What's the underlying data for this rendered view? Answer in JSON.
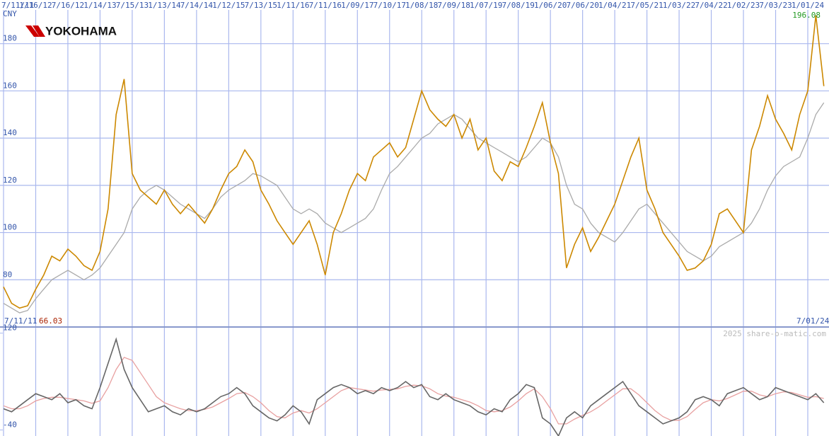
{
  "chart_data": [
    {
      "type": "line",
      "title": "YOKOHAMA",
      "y_label": "CNY",
      "watermark": "2025 share-o-matic.com",
      "low": {
        "date": "7/11/11",
        "value": 66.03
      },
      "high": {
        "date": "7/01/24",
        "value": 196.08
      },
      "categories": [
        "7/11/11",
        null,
        null,
        null,
        "1/16/12",
        null,
        null,
        null,
        "7/16/12",
        null,
        null,
        null,
        "1/14/13",
        null,
        null,
        null,
        "7/15/13",
        null,
        null,
        null,
        "1/13/14",
        null,
        null,
        null,
        "7/14/14",
        null,
        null,
        null,
        "1/12/15",
        null,
        null,
        null,
        "7/13/15",
        null,
        null,
        null,
        "1/11/16",
        null,
        null,
        null,
        "7/11/16",
        null,
        null,
        null,
        "1/09/17",
        null,
        null,
        null,
        "7/10/17",
        null,
        null,
        null,
        "1/08/18",
        null,
        null,
        null,
        "7/09/18",
        null,
        null,
        null,
        "1/07/19",
        null,
        null,
        null,
        "7/08/19",
        null,
        null,
        null,
        "1/06/20",
        null,
        null,
        null,
        "7/06/20",
        null,
        null,
        null,
        "1/04/21",
        null,
        null,
        null,
        "7/05/21",
        null,
        null,
        null,
        "1/03/22",
        null,
        null,
        null,
        "7/04/22",
        null,
        null,
        null,
        "1/02/23",
        null,
        null,
        null,
        "7/03/23",
        null,
        null,
        null,
        "1/01/24",
        null,
        null
      ],
      "series": [
        {
          "color": "#aaaaaa",
          "values": [
            70,
            68,
            66,
            67,
            72,
            76,
            80,
            82,
            84,
            82,
            80,
            82,
            85,
            90,
            95,
            100,
            110,
            115,
            118,
            120,
            118,
            115,
            112,
            110,
            108,
            106,
            110,
            115,
            118,
            120,
            122,
            125,
            124,
            122,
            120,
            115,
            110,
            108,
            110,
            108,
            104,
            102,
            100,
            102,
            104,
            106,
            110,
            118,
            125,
            128,
            132,
            136,
            140,
            142,
            146,
            148,
            150,
            148,
            144,
            140,
            138,
            136,
            134,
            132,
            130,
            132,
            136,
            140,
            138,
            132,
            120,
            112,
            110,
            104,
            100,
            98,
            96,
            100,
            105,
            110,
            112,
            108,
            104,
            100,
            96,
            92,
            90,
            88,
            90,
            94,
            96,
            98,
            100,
            104,
            110,
            118,
            124,
            128,
            130,
            132,
            140,
            150,
            155
          ]
        },
        {
          "color": "#cc8800",
          "values": [
            77,
            70,
            68,
            69,
            76,
            82,
            90,
            88,
            93,
            90,
            86,
            84,
            92,
            110,
            150,
            165,
            125,
            118,
            115,
            112,
            118,
            112,
            108,
            112,
            108,
            104,
            110,
            118,
            125,
            128,
            135,
            130,
            118,
            112,
            105,
            100,
            95,
            100,
            105,
            95,
            82,
            100,
            108,
            118,
            125,
            122,
            132,
            135,
            138,
            132,
            136,
            148,
            160,
            152,
            148,
            145,
            150,
            140,
            148,
            135,
            140,
            126,
            122,
            130,
            128,
            136,
            145,
            155,
            138,
            125,
            85,
            95,
            102,
            92,
            98,
            105,
            112,
            122,
            132,
            140,
            118,
            110,
            100,
            95,
            90,
            84,
            85,
            88,
            95,
            108,
            110,
            105,
            100,
            135,
            145,
            158,
            148,
            142,
            135,
            150,
            160,
            192,
            162
          ]
        }
      ],
      "ylim": [
        60,
        194
      ],
      "yticks": [
        80,
        100,
        120,
        140,
        160,
        180
      ],
      "grid": true
    },
    {
      "type": "line",
      "series": [
        {
          "color": "#e8a0a0",
          "values": [
            0,
            -5,
            -5,
            0,
            8,
            12,
            14,
            14,
            12,
            10,
            8,
            4,
            8,
            30,
            60,
            80,
            75,
            55,
            35,
            15,
            5,
            0,
            -5,
            -8,
            -8,
            -6,
            -2,
            5,
            12,
            20,
            22,
            15,
            5,
            -8,
            -18,
            -20,
            -12,
            -8,
            -12,
            -5,
            5,
            15,
            25,
            30,
            28,
            26,
            24,
            26,
            27,
            28,
            32,
            34,
            33,
            28,
            20,
            16,
            14,
            10,
            6,
            0,
            -8,
            -10,
            -8,
            -2,
            8,
            20,
            28,
            15,
            -5,
            -30,
            -30,
            -22,
            -16,
            -10,
            -2,
            8,
            18,
            28,
            28,
            18,
            5,
            -8,
            -18,
            -24,
            -24,
            -18,
            -6,
            5,
            10,
            8,
            12,
            18,
            24,
            24,
            18,
            15,
            20,
            23,
            22,
            18,
            14,
            15,
            12
          ]
        },
        {
          "color": "#666666",
          "values": [
            -5,
            -10,
            0,
            10,
            20,
            15,
            10,
            20,
            5,
            10,
            0,
            -5,
            30,
            70,
            110,
            60,
            30,
            10,
            -10,
            -5,
            0,
            -10,
            -15,
            -5,
            -10,
            -5,
            5,
            15,
            20,
            30,
            20,
            0,
            -10,
            -20,
            -25,
            -15,
            0,
            -10,
            -30,
            10,
            20,
            30,
            35,
            30,
            20,
            25,
            20,
            30,
            25,
            30,
            40,
            30,
            35,
            15,
            10,
            20,
            10,
            5,
            0,
            -10,
            -15,
            -5,
            -10,
            10,
            20,
            35,
            30,
            -20,
            -30,
            -50,
            -20,
            -10,
            -20,
            0,
            10,
            20,
            30,
            40,
            20,
            0,
            -10,
            -20,
            -30,
            -25,
            -20,
            -10,
            10,
            15,
            10,
            0,
            20,
            25,
            30,
            20,
            10,
            15,
            30,
            25,
            20,
            15,
            10,
            20,
            5
          ]
        }
      ],
      "ylim": [
        -50,
        129
      ],
      "yticks": [
        120,
        -40
      ]
    }
  ]
}
